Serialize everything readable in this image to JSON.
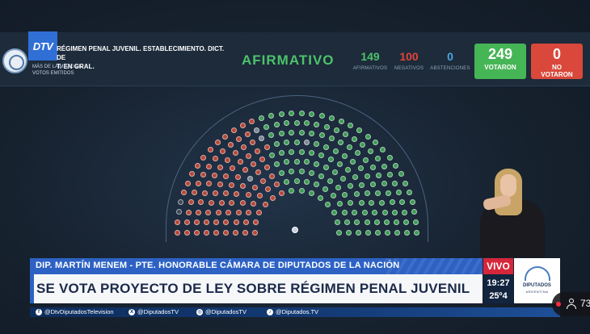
{
  "vote": {
    "subject": "RÉGIMEN PENAL JUVENIL. ESTABLECIMIENTO. DICT. DE\nT. EN GRAL.",
    "majority_type": "MÁS DE LA MITAD DE\nVOTOS EMITIDOS",
    "result": "AFIRMATIVO",
    "afirmativos": {
      "value": "149",
      "label": "AFIRMATIVOS"
    },
    "negativos": {
      "value": "100",
      "label": "NEGATIVOS"
    },
    "abstenciones": {
      "value": "0",
      "label": "ABSTENCIONES"
    },
    "votaron": {
      "value": "249",
      "label": "VOTARON"
    },
    "no_votaron": {
      "value": "0",
      "label": "NO\nVOTARON"
    },
    "colors": {
      "afirmativo": "#4cc36a",
      "negativo": "#e0453a",
      "abstencion": "#4aa8e0"
    }
  },
  "logo": {
    "channel": "DTV"
  },
  "lower_third": {
    "speaker": "DIP. MARTÍN MENEM - PTE. HONORABLE CÁMARA DE DIPUTADOS DE LA NACIÓN",
    "headline": "SE VOTA PROYECTO DE LEY SOBRE RÉGIMEN PENAL JUVENIL",
    "live": "VIVO",
    "time": "19:27",
    "temperature": "25º4",
    "chamber_logo_line1": "DIPUTADOS",
    "chamber_logo_line2": "ARGENTINA"
  },
  "socials": [
    {
      "icon": "facebook-icon",
      "glyph": "f",
      "handle": "@DtvDiputadosTelevision"
    },
    {
      "icon": "x-icon",
      "glyph": "X",
      "handle": "@DiputadosTV"
    },
    {
      "icon": "instagram-icon",
      "glyph": "◎",
      "handle": "@DiputadosTV"
    },
    {
      "icon": "tiktok-icon",
      "glyph": "♪",
      "handle": "@Diputados.TV"
    }
  ],
  "viewers": {
    "count": "73"
  }
}
